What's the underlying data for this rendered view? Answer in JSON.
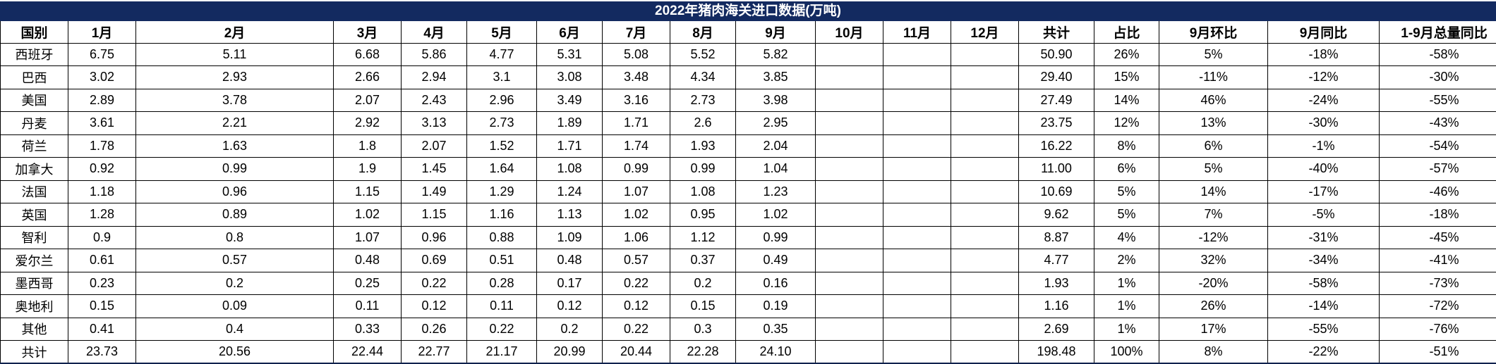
{
  "title": "2022年猪肉海关进口数据(万吨)",
  "colors": {
    "title_bg": "#132a60",
    "title_text": "#ffffff",
    "grid": "#000000",
    "background": "#ffffff"
  },
  "chart_data": {
    "type": "table",
    "title": "2022年猪肉海关进口数据(万吨)",
    "unit": "万吨",
    "columns": [
      "国别",
      "1月",
      "2月",
      "3月",
      "4月",
      "5月",
      "6月",
      "7月",
      "8月",
      "9月",
      "10月",
      "11月",
      "12月",
      "共计",
      "占比",
      "9月环比",
      "9月同比",
      "1-9月总量同比"
    ],
    "rows": [
      [
        "西班牙",
        "6.75",
        "5.11",
        "6.68",
        "5.86",
        "4.77",
        "5.31",
        "5.08",
        "5.52",
        "5.82",
        "",
        "",
        "",
        "50.90",
        "26%",
        "5%",
        "-18%",
        "-58%"
      ],
      [
        "巴西",
        "3.02",
        "2.93",
        "2.66",
        "2.94",
        "3.1",
        "3.08",
        "3.48",
        "4.34",
        "3.85",
        "",
        "",
        "",
        "29.40",
        "15%",
        "-11%",
        "-12%",
        "-30%"
      ],
      [
        "美国",
        "2.89",
        "3.78",
        "2.07",
        "2.43",
        "2.96",
        "3.49",
        "3.16",
        "2.73",
        "3.98",
        "",
        "",
        "",
        "27.49",
        "14%",
        "46%",
        "-24%",
        "-55%"
      ],
      [
        "丹麦",
        "3.61",
        "2.21",
        "2.92",
        "3.13",
        "2.73",
        "1.89",
        "1.71",
        "2.6",
        "2.95",
        "",
        "",
        "",
        "23.75",
        "12%",
        "13%",
        "-30%",
        "-43%"
      ],
      [
        "荷兰",
        "1.78",
        "1.63",
        "1.8",
        "2.07",
        "1.52",
        "1.71",
        "1.74",
        "1.93",
        "2.04",
        "",
        "",
        "",
        "16.22",
        "8%",
        "6%",
        "-1%",
        "-54%"
      ],
      [
        "加拿大",
        "0.92",
        "0.99",
        "1.9",
        "1.45",
        "1.64",
        "1.08",
        "0.99",
        "0.99",
        "1.04",
        "",
        "",
        "",
        "11.00",
        "6%",
        "5%",
        "-40%",
        "-57%"
      ],
      [
        "法国",
        "1.18",
        "0.96",
        "1.15",
        "1.49",
        "1.29",
        "1.24",
        "1.07",
        "1.08",
        "1.23",
        "",
        "",
        "",
        "10.69",
        "5%",
        "14%",
        "-17%",
        "-46%"
      ],
      [
        "英国",
        "1.28",
        "0.89",
        "1.02",
        "1.15",
        "1.16",
        "1.13",
        "1.02",
        "0.95",
        "1.02",
        "",
        "",
        "",
        "9.62",
        "5%",
        "7%",
        "-5%",
        "-18%"
      ],
      [
        "智利",
        "0.9",
        "0.8",
        "1.07",
        "0.96",
        "0.88",
        "1.09",
        "1.06",
        "1.12",
        "0.99",
        "",
        "",
        "",
        "8.87",
        "4%",
        "-12%",
        "-31%",
        "-45%"
      ],
      [
        "爱尔兰",
        "0.61",
        "0.57",
        "0.48",
        "0.69",
        "0.51",
        "0.48",
        "0.57",
        "0.37",
        "0.49",
        "",
        "",
        "",
        "4.77",
        "2%",
        "32%",
        "-34%",
        "-41%"
      ],
      [
        "墨西哥",
        "0.23",
        "0.2",
        "0.25",
        "0.22",
        "0.28",
        "0.17",
        "0.22",
        "0.2",
        "0.16",
        "",
        "",
        "",
        "1.93",
        "1%",
        "-20%",
        "-58%",
        "-73%"
      ],
      [
        "奥地利",
        "0.15",
        "0.09",
        "0.11",
        "0.12",
        "0.11",
        "0.12",
        "0.12",
        "0.15",
        "0.19",
        "",
        "",
        "",
        "1.16",
        "1%",
        "26%",
        "-14%",
        "-72%"
      ],
      [
        "其他",
        "0.41",
        "0.4",
        "0.33",
        "0.26",
        "0.22",
        "0.2",
        "0.22",
        "0.3",
        "0.35",
        "",
        "",
        "",
        "2.69",
        "1%",
        "17%",
        "-55%",
        "-76%"
      ],
      [
        "共计",
        "23.73",
        "20.56",
        "22.44",
        "22.77",
        "21.17",
        "20.99",
        "20.44",
        "22.28",
        "24.10",
        "",
        "",
        "",
        "198.48",
        "100%",
        "8%",
        "-22%",
        "-51%"
      ]
    ],
    "layout": {
      "grid": true,
      "header_bold": true,
      "empty_columns": [
        "10月",
        "11月",
        "12月"
      ]
    }
  }
}
